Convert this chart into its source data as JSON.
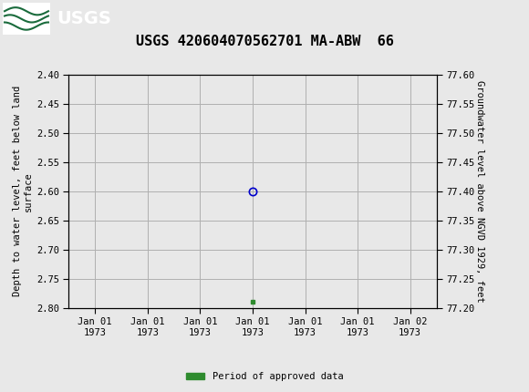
{
  "title": "USGS 420604070562701 MA-ABW  66",
  "left_ylabel": "Depth to water level, feet below land\nsurface",
  "right_ylabel": "Groundwater level above NGVD 1929, feet",
  "ylim_left": [
    2.4,
    2.8
  ],
  "ylim_right": [
    77.2,
    77.6
  ],
  "left_yticks": [
    2.4,
    2.45,
    2.5,
    2.55,
    2.6,
    2.65,
    2.7,
    2.75,
    2.8
  ],
  "right_yticks": [
    77.6,
    77.55,
    77.5,
    77.45,
    77.4,
    77.35,
    77.3,
    77.25,
    77.2
  ],
  "xtick_labels": [
    "Jan 01\n1973",
    "Jan 01\n1973",
    "Jan 01\n1973",
    "Jan 01\n1973",
    "Jan 01\n1973",
    "Jan 01\n1973",
    "Jan 02\n1973"
  ],
  "xtick_positions": [
    0,
    1,
    2,
    3,
    4,
    5,
    6
  ],
  "xlim": [
    -0.5,
    6.5
  ],
  "blue_point_x": 3,
  "blue_point_y": 2.6,
  "green_point_x": 3,
  "green_point_y": 2.79,
  "blue_color": "#0000cc",
  "green_color": "#2e8b2e",
  "header_color": "#1a6b3c",
  "background_color": "#e8e8e8",
  "plot_bg_color": "#e8e8e8",
  "grid_color": "#b0b0b0",
  "legend_label": "Period of approved data",
  "title_fontsize": 11,
  "label_fontsize": 7.5,
  "tick_fontsize": 7.5,
  "font_family": "DejaVu Sans Mono"
}
